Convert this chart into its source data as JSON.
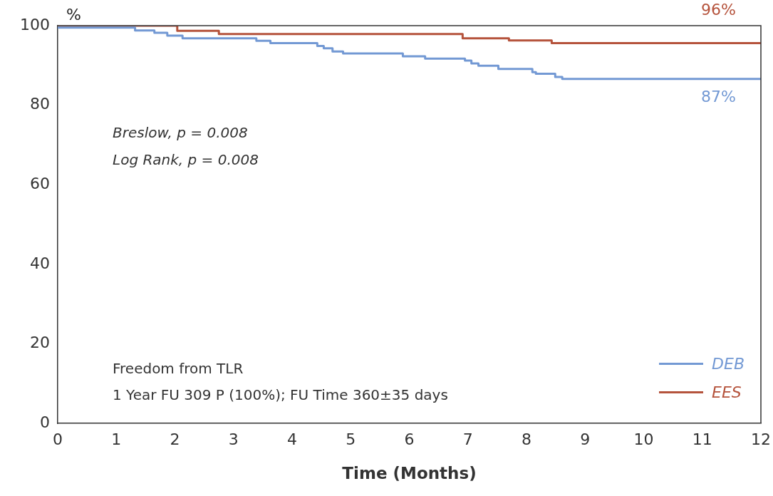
{
  "chart_data": {
    "type": "step",
    "xlabel": "Time (Months)",
    "ylabel": "%",
    "xlim": [
      0,
      12
    ],
    "xticks": [
      0,
      1,
      2,
      3,
      4,
      5,
      6,
      7,
      8,
      9,
      10,
      11,
      12
    ],
    "ylim": [
      0,
      100
    ],
    "yticks": [
      0,
      20,
      40,
      60,
      80,
      100
    ],
    "grid": false,
    "legend": "bottom right",
    "line_style": "solid",
    "marker": "none",
    "series": [
      {
        "name": "DEB",
        "color": "#7399d4",
        "x": [
          0,
          1.32,
          1.65,
          1.87,
          2.13,
          3.39,
          3.63,
          4.43,
          4.54,
          4.69,
          4.87,
          5.89,
          6.27,
          6.95,
          7.06,
          7.18,
          7.52,
          8.1,
          8.16,
          8.49,
          8.61,
          12
        ],
        "values": [
          99.5,
          98.8,
          98.2,
          97.5,
          96.8,
          96.2,
          95.6,
          94.9,
          94.3,
          93.5,
          93,
          92.3,
          91.7,
          91.2,
          90.5,
          89.9,
          89.1,
          88.3,
          87.9,
          87.1,
          86.6,
          86.6
        ]
      },
      {
        "name": "EES",
        "color": "#b5533c",
        "x": [
          0,
          2.04,
          2.75,
          6.91,
          7.7,
          8.43,
          12
        ],
        "values": [
          100,
          98.7,
          97.9,
          96.8,
          96.3,
          95.6,
          95.6
        ]
      }
    ],
    "annotations": [
      {
        "text": "96%",
        "x": 12,
        "y": 95.6
      },
      {
        "text": "87%",
        "x": 12,
        "y": 86.6
      },
      "Breslow, p = 0.008",
      "Log Rank, p = 0.008",
      "Freedom from TLR",
      "1 Year FU 309 P (100%); FU Time 360±35 days"
    ]
  }
}
